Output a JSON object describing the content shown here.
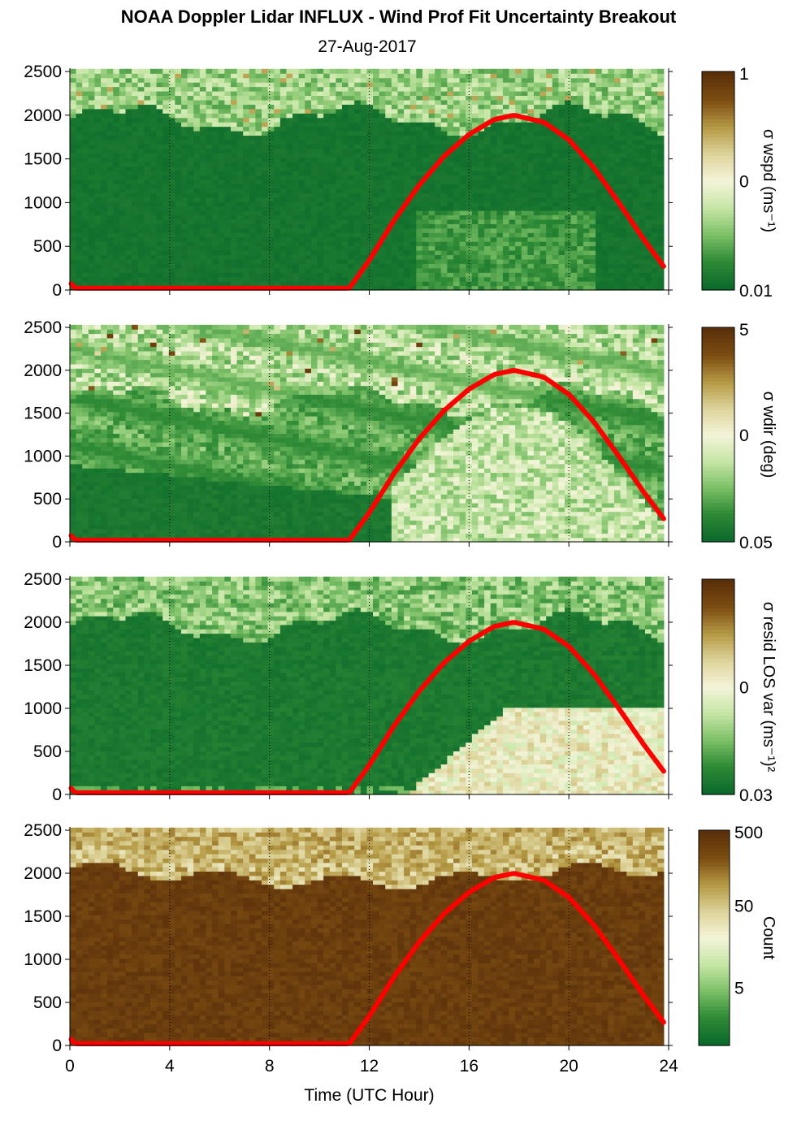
{
  "title": "NOAA Doppler Lidar INFLUX - Wind Prof Fit Uncertainty Breakout",
  "subtitle": "27-Aug-2017",
  "colors": {
    "curve": "#ff0000",
    "colormap": [
      "#0b6a2c",
      "#2e8a35",
      "#7cc067",
      "#c6e6a6",
      "#f3f4d8",
      "#ddd39a",
      "#b59a45",
      "#7d4d12",
      "#5a300a"
    ]
  },
  "chart_data": {
    "type": "heatmap",
    "xlabel": "Time (UTC Hour)",
    "xlim": [
      0,
      24
    ],
    "x_ticks": [
      0,
      4,
      8,
      12,
      16,
      20,
      24
    ],
    "ylim": [
      0,
      2500
    ],
    "y_ticks": [
      0,
      500,
      1000,
      1500,
      2000,
      2500
    ],
    "grid": "dotted vertical lines at 4-hour intervals",
    "overlay_curve": {
      "description": "red boundary-layer curve",
      "x": [
        0,
        0.2,
        11.2,
        12,
        13,
        14,
        15,
        16,
        17,
        17.8,
        19,
        20,
        21,
        22,
        23,
        23.8
      ],
      "y": [
        90,
        20,
        20,
        340,
        800,
        1200,
        1530,
        1780,
        1950,
        2000,
        1920,
        1720,
        1400,
        1000,
        580,
        270
      ]
    },
    "panels": [
      {
        "colorbar_label": "σ wspd (ms⁻¹)",
        "colorbar_ticks": [
          "1",
          "0",
          "0.01"
        ],
        "scale": "log",
        "range": [
          0.01,
          1
        ],
        "description": "mostly low (dark green) below ~1900 m; higher noisy values near 2000-2500 m"
      },
      {
        "colorbar_label": "σ wdir (deg)",
        "colorbar_ticks": [
          "5",
          "0",
          "0.05"
        ],
        "scale": "log",
        "range": [
          0.05,
          5
        ],
        "description": "layered higher values aloft; elevated uncertainty in daytime boundary layer 13-24 h"
      },
      {
        "colorbar_label": "σ resid LOS var (ms⁻¹)²",
        "colorbar_ticks": [
          "",
          "0",
          "0.03"
        ],
        "scale": "log",
        "range": [
          0.03,
          3
        ],
        "description": "high values in convective boundary layer below ~1000 m after 14 h"
      },
      {
        "colorbar_label": "Count",
        "colorbar_ticks": [
          "500",
          "50",
          "5"
        ],
        "scale": "log",
        "range": [
          1,
          500
        ],
        "description": "high counts (brown) below ~2000 m; decreasing aloft"
      }
    ]
  }
}
